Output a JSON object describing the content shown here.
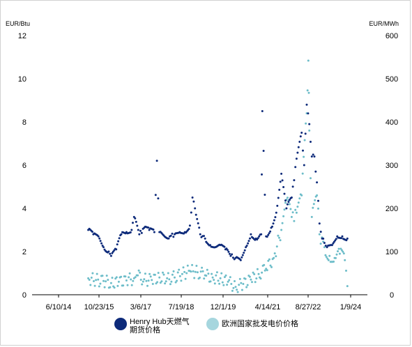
{
  "chart_data": {
    "type": "scatter",
    "y_left_label": "EUR/Btu",
    "y_right_label": "EUR/MWh",
    "y_left_ticks": [
      "0",
      "2",
      "4",
      "6",
      "8",
      "10",
      "12"
    ],
    "y_right_ticks": [
      "0",
      "100",
      "200",
      "300",
      "400",
      "500",
      "600"
    ],
    "ylim_left": [
      0,
      12
    ],
    "ylim_right": [
      0,
      600
    ],
    "x_ticks": [
      "6/10/14",
      "10/23/15",
      "3/6/17",
      "7/19/18",
      "12/1/19",
      "4/14/21",
      "8/27/22",
      "1/9/24"
    ],
    "grid": false,
    "legend_position": "bottom",
    "series": [
      {
        "name": "Henry Hub天燃气期货价格",
        "axis": "left",
        "color": "#0d2a7a",
        "points": [
          [
            "2015-06-01",
            3.0
          ],
          [
            "2015-08-01",
            2.8
          ],
          [
            "2015-10-01",
            2.7
          ],
          [
            "2015-12-01",
            2.2
          ],
          [
            "2016-02-01",
            2.0
          ],
          [
            "2016-03-01",
            1.8
          ],
          [
            "2016-05-01",
            2.1
          ],
          [
            "2016-07-01",
            2.8
          ],
          [
            "2016-09-01",
            2.9
          ],
          [
            "2016-11-01",
            3.0
          ],
          [
            "2016-12-01",
            3.6
          ],
          [
            "2017-02-01",
            2.8
          ],
          [
            "2017-04-01",
            3.1
          ],
          [
            "2017-06-01",
            3.0
          ],
          [
            "2017-08-01",
            2.9
          ],
          [
            "2017-09-01",
            6.2
          ],
          [
            "2017-10-01",
            2.9
          ],
          [
            "2017-12-01",
            2.7
          ],
          [
            "2018-02-01",
            2.7
          ],
          [
            "2018-04-01",
            2.8
          ],
          [
            "2018-06-01",
            2.9
          ],
          [
            "2018-08-01",
            2.9
          ],
          [
            "2018-10-01",
            3.2
          ],
          [
            "2018-11-01",
            4.5
          ],
          [
            "2018-12-01",
            4.0
          ],
          [
            "2019-02-01",
            2.8
          ],
          [
            "2019-04-01",
            2.6
          ],
          [
            "2019-06-01",
            2.3
          ],
          [
            "2019-08-01",
            2.2
          ],
          [
            "2019-10-01",
            2.3
          ],
          [
            "2019-12-01",
            2.1
          ],
          [
            "2020-02-01",
            1.8
          ],
          [
            "2020-04-01",
            1.7
          ],
          [
            "2020-06-01",
            1.6
          ],
          [
            "2020-08-01",
            2.2
          ],
          [
            "2020-10-01",
            2.8
          ],
          [
            "2020-12-01",
            2.6
          ],
          [
            "2021-02-01",
            2.8
          ],
          [
            "2021-02-15",
            8.5
          ],
          [
            "2021-04-01",
            2.7
          ],
          [
            "2021-06-01",
            3.1
          ],
          [
            "2021-08-01",
            3.8
          ],
          [
            "2021-10-01",
            5.6
          ],
          [
            "2021-12-01",
            4.0
          ],
          [
            "2022-02-01",
            4.5
          ],
          [
            "2022-04-01",
            6.3
          ],
          [
            "2022-06-01",
            7.5
          ],
          [
            "2022-07-01",
            6.0
          ],
          [
            "2022-08-01",
            8.8
          ],
          [
            "2022-09-01",
            7.9
          ],
          [
            "2022-10-01",
            6.4
          ],
          [
            "2022-11-01",
            6.4
          ],
          [
            "2022-12-01",
            5.2
          ],
          [
            "2023-01-01",
            3.3
          ],
          [
            "2023-02-01",
            2.6
          ],
          [
            "2023-03-01",
            2.4
          ],
          [
            "2023-04-01",
            2.2
          ],
          [
            "2023-06-01",
            2.3
          ],
          [
            "2023-08-01",
            2.7
          ],
          [
            "2023-10-01",
            2.7
          ],
          [
            "2023-12-01",
            2.6
          ]
        ]
      },
      {
        "name": "欧洲国家批发电价价格",
        "axis": "right",
        "color": "#6dbdc9",
        "points": [
          [
            "2015-06-01",
            38
          ],
          [
            "2015-09-01",
            34
          ],
          [
            "2015-12-01",
            32
          ],
          [
            "2016-03-01",
            27
          ],
          [
            "2016-06-01",
            30
          ],
          [
            "2016-09-01",
            33
          ],
          [
            "2016-12-01",
            38
          ],
          [
            "2017-01-01",
            45
          ],
          [
            "2017-04-01",
            36
          ],
          [
            "2017-07-01",
            34
          ],
          [
            "2017-10-01",
            40
          ],
          [
            "2018-01-01",
            38
          ],
          [
            "2018-04-01",
            40
          ],
          [
            "2018-07-01",
            48
          ],
          [
            "2018-10-01",
            55
          ],
          [
            "2019-01-01",
            52
          ],
          [
            "2019-04-01",
            45
          ],
          [
            "2019-07-01",
            40
          ],
          [
            "2019-10-01",
            38
          ],
          [
            "2020-01-01",
            30
          ],
          [
            "2020-04-01",
            18
          ],
          [
            "2020-07-01",
            25
          ],
          [
            "2020-10-01",
            35
          ],
          [
            "2021-01-01",
            48
          ],
          [
            "2021-04-01",
            60
          ],
          [
            "2021-07-01",
            85
          ],
          [
            "2021-10-01",
            150
          ],
          [
            "2021-12-01",
            220
          ],
          [
            "2022-02-01",
            180
          ],
          [
            "2022-04-01",
            190
          ],
          [
            "2022-06-01",
            230
          ],
          [
            "2022-08-01",
            420
          ],
          [
            "2022-08-20",
            542
          ],
          [
            "2022-09-01",
            380
          ],
          [
            "2022-10-01",
            180
          ],
          [
            "2022-12-01",
            230
          ],
          [
            "2023-01-01",
            140
          ],
          [
            "2023-03-01",
            110
          ],
          [
            "2023-05-01",
            90
          ],
          [
            "2023-07-01",
            85
          ],
          [
            "2023-09-01",
            95
          ],
          [
            "2023-11-01",
            80
          ],
          [
            "2023-12-01",
            20
          ]
        ]
      }
    ]
  }
}
